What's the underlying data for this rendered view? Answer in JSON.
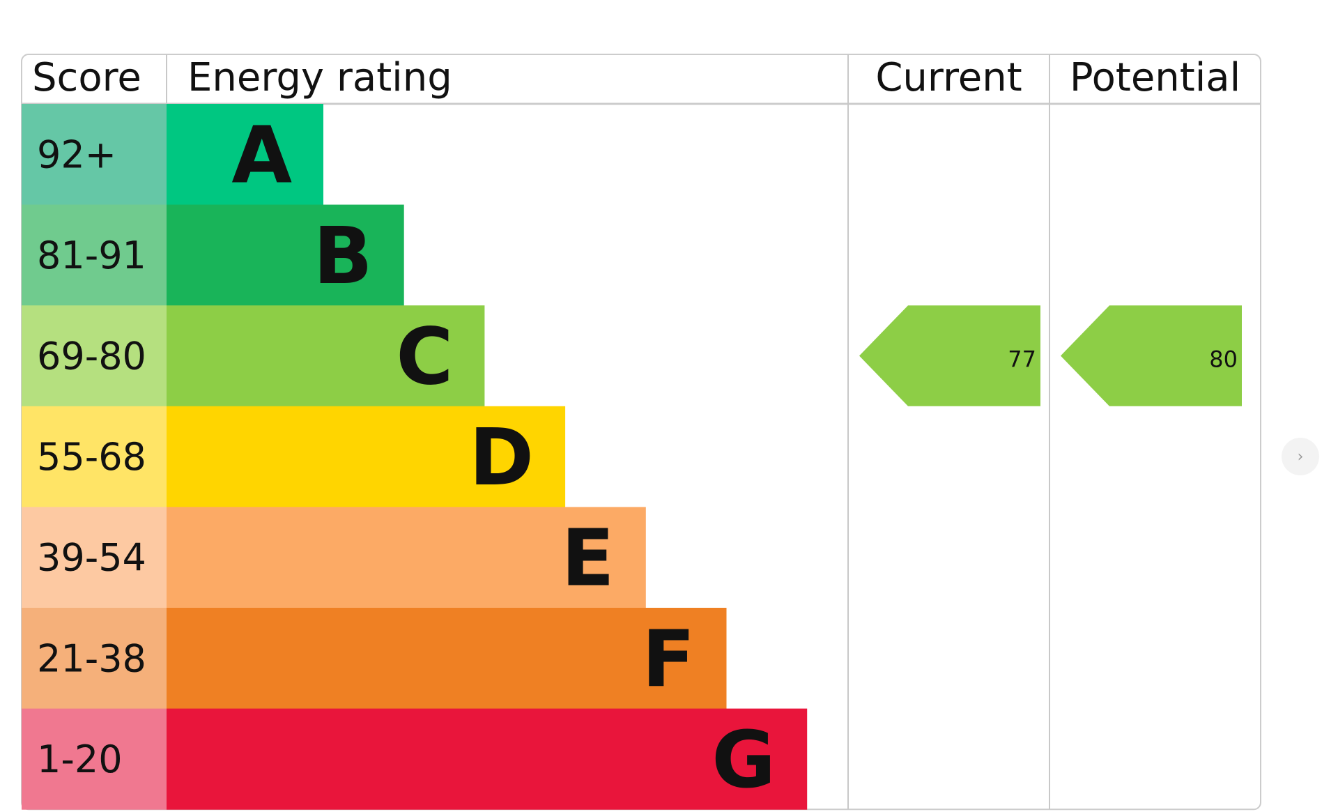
{
  "chart_data": {
    "type": "table",
    "headers": {
      "score": "Score",
      "rating": "Energy rating",
      "current": "Current",
      "potential": "Potential"
    },
    "bands": [
      {
        "score": "92+",
        "letter": "A",
        "color": "#00c781",
        "score_color": "#65c7a6"
      },
      {
        "score": "81-91",
        "letter": "B",
        "color": "#19b459",
        "score_color": "#70cb8e"
      },
      {
        "score": "69-80",
        "letter": "C",
        "color": "#8dce46",
        "score_color": "#b5e07f"
      },
      {
        "score": "55-68",
        "letter": "D",
        "color": "#ffd500",
        "score_color": "#ffe466"
      },
      {
        "score": "39-54",
        "letter": "E",
        "color": "#fcaa65",
        "score_color": "#fdc9a2"
      },
      {
        "score": "21-38",
        "letter": "F",
        "color": "#ef8023",
        "score_color": "#f5b07a"
      },
      {
        "score": "1-20",
        "letter": "G",
        "color": "#e9153b",
        "score_color": "#f07890"
      }
    ],
    "current": {
      "value": "77",
      "band": "C",
      "color": "#8dce46"
    },
    "potential": {
      "value": "80",
      "band": "C",
      "color": "#8dce46"
    }
  },
  "nav": {
    "next_icon": "chevron-right-icon",
    "next_label": "›"
  }
}
